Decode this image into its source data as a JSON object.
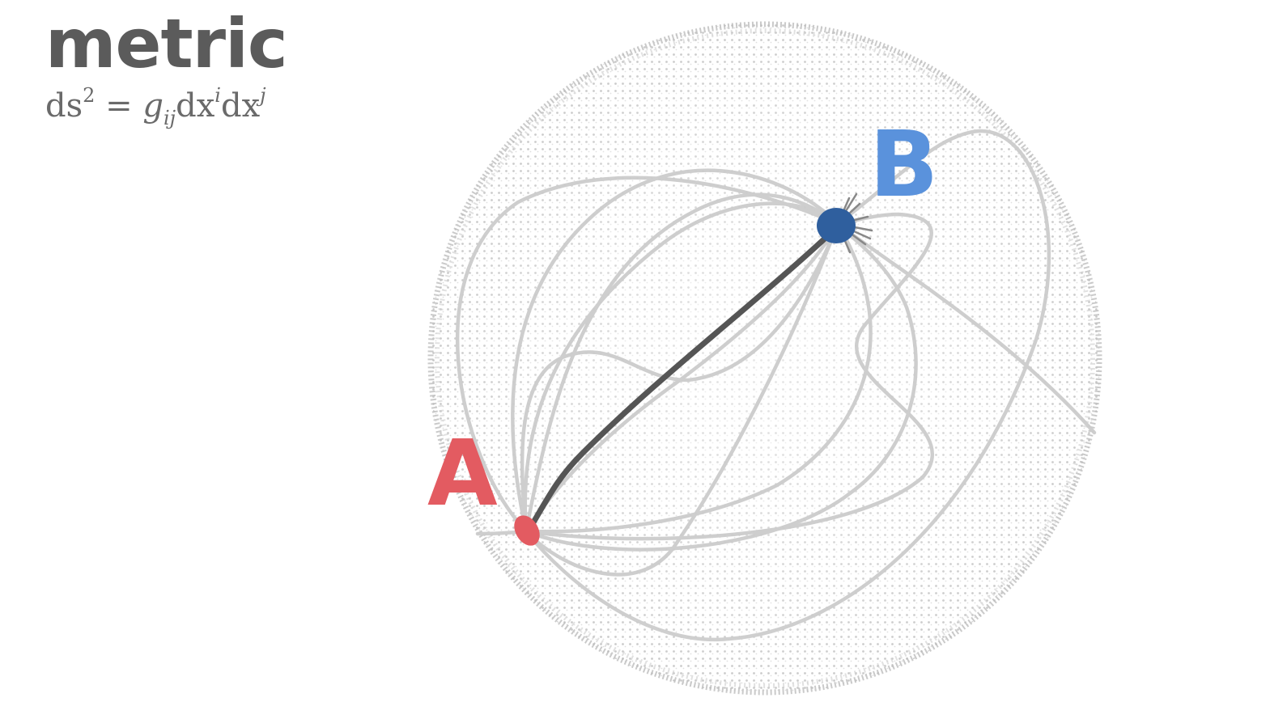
{
  "title": "metric",
  "formula": {
    "lhs": "ds",
    "lhs_exp": "2",
    "eq": " = ",
    "g": "g",
    "g_sub": "ij",
    "d1": "dx",
    "d1_sup": "i",
    "d2": "dx",
    "d2_sup": "j"
  },
  "points": {
    "a": {
      "label": "A",
      "color": "#e35b61"
    },
    "b": {
      "label": "B",
      "color": "#2f5f9e"
    }
  },
  "colors": {
    "sphere_dots": "#b8b8b8",
    "paths": "#cfcfcf",
    "geodesic": "#555555",
    "label_b": "#5a92dc"
  }
}
